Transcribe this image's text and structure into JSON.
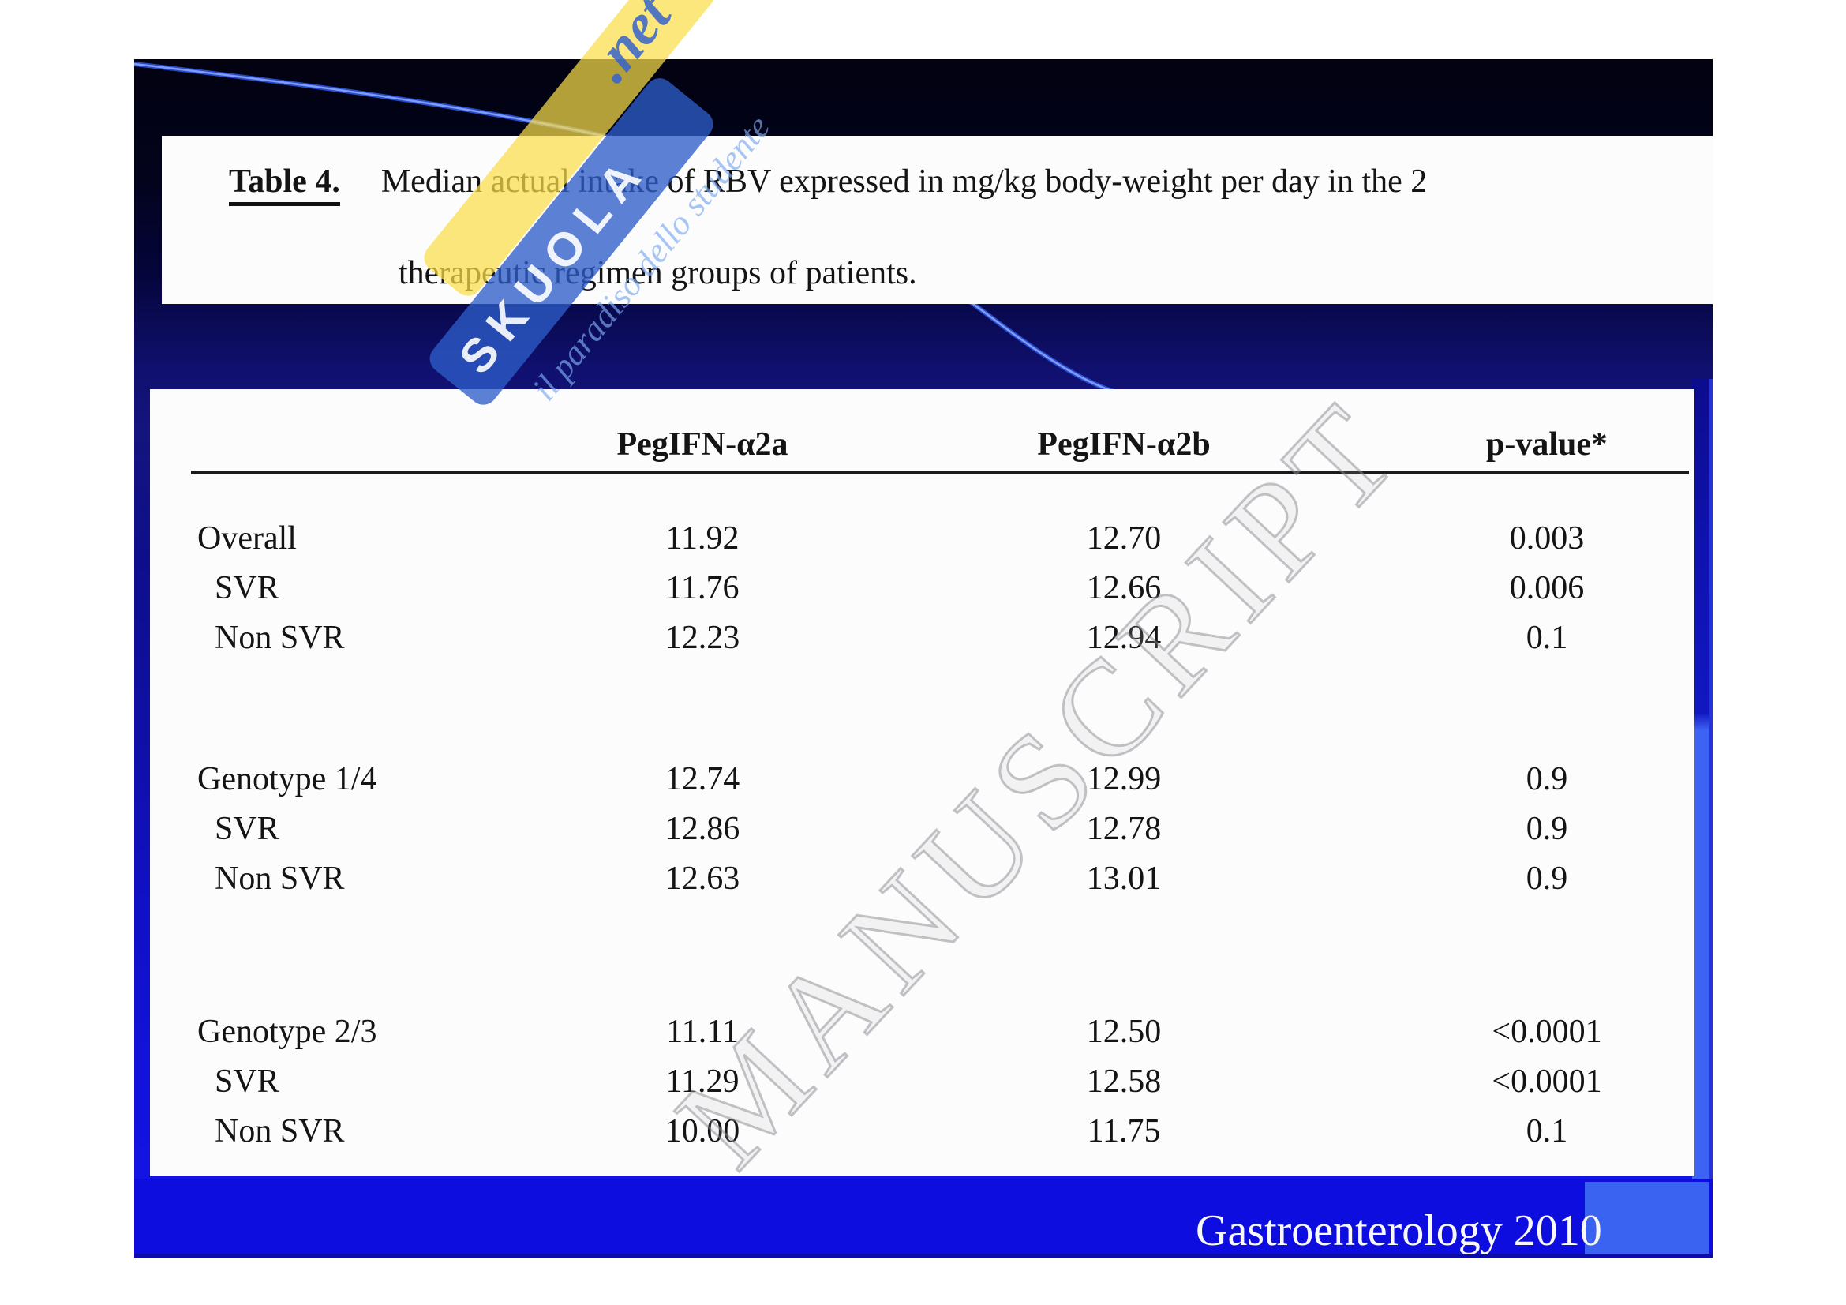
{
  "caption": {
    "label": "Table 4.",
    "line1": "Median actual intake of RBV expressed in mg/kg body-weight per day in the 2",
    "line2": "therapeutic regimen groups of patients."
  },
  "table": {
    "column_headers": [
      "PegIFN-α2a",
      "PegIFN-α2b",
      "p-value*"
    ],
    "groups": [
      {
        "rows": [
          {
            "label": "Overall",
            "values": [
              "11.92",
              "12.70",
              "0.003"
            ]
          },
          {
            "label": "SVR",
            "values": [
              "11.76",
              "12.66",
              "0.006"
            ]
          },
          {
            "label": "Non SVR",
            "values": [
              "12.23",
              "12.94",
              "0.1"
            ]
          }
        ]
      },
      {
        "rows": [
          {
            "label": "Genotype 1/4",
            "values": [
              "12.74",
              "12.99",
              "0.9"
            ]
          },
          {
            "label": "SVR",
            "values": [
              "12.86",
              "12.78",
              "0.9"
            ]
          },
          {
            "label": "Non SVR",
            "values": [
              "12.63",
              "13.01",
              "0.9"
            ]
          }
        ]
      },
      {
        "rows": [
          {
            "label": "Genotype 2/3",
            "values": [
              "11.11",
              "12.50",
              "<0.0001"
            ]
          },
          {
            "label": "SVR",
            "values": [
              "11.29",
              "12.58",
              "<0.0001"
            ]
          },
          {
            "label": "Non SVR",
            "values": [
              "10.00",
              "11.75",
              "0.1"
            ]
          }
        ]
      }
    ]
  },
  "footer": {
    "citation": "Gastroenterology 2010"
  },
  "watermarks": {
    "logo_word": "SKUOLA",
    "logo_domain": ".net",
    "tagline": "il paradiso dello studente",
    "manuscript": "MANUSCRIPT"
  },
  "colors": {
    "footer_bar_blue": "#0d0de0",
    "accent_light_blue": "#3b63f2",
    "slide_top_navy": "#020211",
    "slide_bottom_blue": "#1414ea",
    "swoosh_blue": "#2a4fd6",
    "logo_ribbon_blue": "#2d5cc8",
    "logo_ribbon_yellow": "#fade48",
    "manuscript_gray": "#87878d"
  }
}
